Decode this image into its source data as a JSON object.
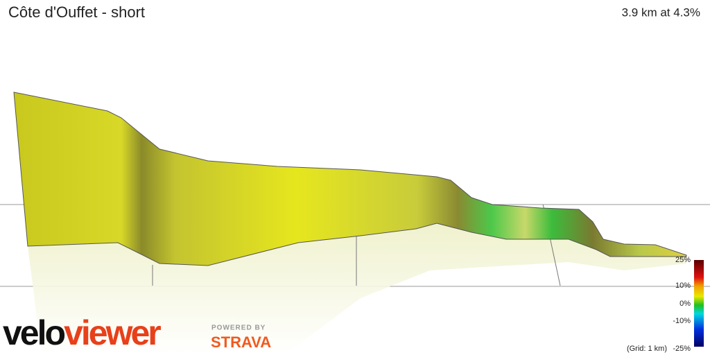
{
  "header": {
    "title": "Côte d'Ouffet - short",
    "stats": "3.9 km at 4.3%"
  },
  "scale": {
    "labels": [
      "25%",
      "10%",
      "0%",
      "-10%",
      "-25%"
    ],
    "grid_note": "(Grid: 1 km)"
  },
  "branding": {
    "logo_part1": "velo",
    "logo_part2": "viewer",
    "powered_by": "POWERED BY",
    "partner": "STRAVA"
  }
}
